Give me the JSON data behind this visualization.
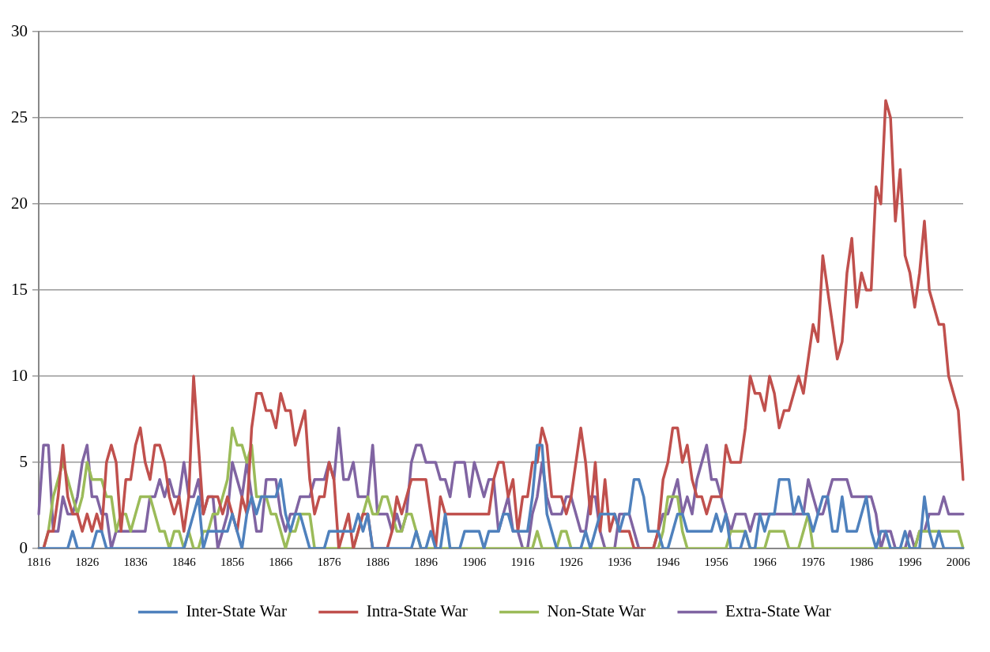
{
  "chart_data": {
    "type": "line",
    "categories": [
      "1816",
      null,
      null,
      null,
      null,
      null,
      null,
      null,
      null,
      null,
      "1826",
      null,
      null,
      null,
      null,
      null,
      null,
      null,
      null,
      null,
      "1836",
      null,
      null,
      null,
      null,
      null,
      null,
      null,
      null,
      null,
      "1846",
      null,
      null,
      null,
      null,
      null,
      null,
      null,
      null,
      null,
      "1856",
      null,
      null,
      null,
      null,
      null,
      null,
      null,
      null,
      null,
      "1866",
      null,
      null,
      null,
      null,
      null,
      null,
      null,
      null,
      null,
      "1876",
      null,
      null,
      null,
      null,
      null,
      null,
      null,
      null,
      null,
      "1886",
      null,
      null,
      null,
      null,
      null,
      null,
      null,
      null,
      null,
      "1896",
      null,
      null,
      null,
      null,
      null,
      null,
      null,
      null,
      null,
      "1906",
      null,
      null,
      null,
      null,
      null,
      null,
      null,
      null,
      null,
      "1916",
      null,
      null,
      null,
      null,
      null,
      null,
      null,
      null,
      null,
      "1926",
      null,
      null,
      null,
      null,
      null,
      null,
      null,
      null,
      null,
      "1936",
      null,
      null,
      null,
      null,
      null,
      null,
      null,
      null,
      null,
      "1946",
      null,
      null,
      null,
      null,
      null,
      null,
      null,
      null,
      null,
      "1956",
      null,
      null,
      null,
      null,
      null,
      null,
      null,
      null,
      null,
      "1966",
      null,
      null,
      null,
      null,
      null,
      null,
      null,
      null,
      null,
      "1976",
      null,
      null,
      null,
      null,
      null,
      null,
      null,
      null,
      null,
      "1986",
      null,
      null,
      null,
      null,
      null,
      null,
      null,
      null,
      null,
      "1996",
      null,
      null,
      null,
      null,
      null,
      null,
      null,
      null,
      null,
      "2006",
      null
    ],
    "series": [
      {
        "name": "Inter-State War",
        "color": "#4f81bd",
        "values": [
          0,
          0,
          0,
          0,
          0,
          0,
          0,
          1,
          0,
          0,
          0,
          0,
          1,
          1,
          0,
          0,
          0,
          0,
          0,
          0,
          0,
          0,
          0,
          0,
          0,
          0,
          0,
          0,
          0,
          0,
          0,
          1,
          2,
          3,
          0,
          1,
          1,
          1,
          1,
          1,
          2,
          1,
          0,
          2,
          3,
          2,
          3,
          3,
          3,
          3,
          4,
          2,
          1,
          2,
          2,
          1,
          0,
          0,
          0,
          0,
          1,
          1,
          1,
          1,
          1,
          1,
          2,
          1,
          2,
          0,
          0,
          0,
          0,
          0,
          0,
          0,
          0,
          0,
          1,
          0,
          0,
          1,
          0,
          0,
          2,
          0,
          0,
          0,
          1,
          1,
          1,
          1,
          0,
          1,
          1,
          1,
          2,
          2,
          1,
          1,
          1,
          1,
          3,
          6,
          6,
          2,
          1,
          0,
          0,
          0,
          0,
          0,
          0,
          1,
          0,
          1,
          2,
          2,
          2,
          2,
          1,
          2,
          2,
          4,
          4,
          3,
          1,
          1,
          1,
          0,
          0,
          1,
          2,
          2,
          1,
          1,
          1,
          1,
          1,
          1,
          2,
          1,
          2,
          0,
          0,
          0,
          1,
          0,
          0,
          2,
          1,
          2,
          2,
          4,
          4,
          4,
          2,
          3,
          2,
          2,
          1,
          2,
          3,
          3,
          1,
          1,
          3,
          1,
          1,
          1,
          2,
          3,
          1,
          0,
          1,
          1,
          0,
          0,
          0,
          1,
          0,
          0,
          0,
          3,
          1,
          0,
          1,
          0,
          0,
          0,
          0,
          0
        ]
      },
      {
        "name": "Intra-State War",
        "color": "#c0504d",
        "values": [
          0,
          0,
          1,
          1,
          3,
          6,
          3,
          2,
          2,
          1,
          2,
          1,
          2,
          1,
          5,
          6,
          5,
          1,
          4,
          4,
          6,
          7,
          5,
          4,
          6,
          6,
          5,
          3,
          2,
          3,
          1,
          3,
          10,
          6,
          2,
          3,
          3,
          3,
          2,
          3,
          2,
          1,
          3,
          2,
          7,
          9,
          9,
          8,
          8,
          7,
          9,
          8,
          8,
          6,
          7,
          8,
          4,
          2,
          3,
          3,
          5,
          4,
          0,
          1,
          2,
          0,
          1,
          2,
          2,
          0,
          0,
          0,
          0,
          1,
          3,
          2,
          3,
          4,
          4,
          4,
          4,
          2,
          0,
          3,
          2,
          2,
          2,
          2,
          2,
          2,
          2,
          2,
          2,
          2,
          4,
          5,
          5,
          3,
          4,
          1,
          3,
          3,
          5,
          5,
          7,
          6,
          3,
          3,
          3,
          2,
          3,
          5,
          7,
          5,
          2,
          5,
          1,
          4,
          1,
          2,
          1,
          1,
          1,
          0,
          0,
          0,
          0,
          0,
          1,
          4,
          5,
          7,
          7,
          5,
          6,
          4,
          3,
          3,
          2,
          3,
          3,
          3,
          6,
          5,
          5,
          5,
          7,
          10,
          9,
          9,
          8,
          10,
          9,
          7,
          8,
          8,
          9,
          10,
          9,
          11,
          13,
          12,
          17,
          15,
          13,
          11,
          12,
          16,
          18,
          14,
          16,
          15,
          15,
          21,
          20,
          26,
          25,
          19,
          22,
          17,
          16,
          14,
          16,
          19,
          15,
          14,
          13,
          13,
          10,
          9,
          8,
          4
        ]
      },
      {
        "name": "Non-State War",
        "color": "#9bbb59",
        "values": [
          0,
          0,
          1,
          3,
          4,
          5,
          4,
          3,
          2,
          3,
          5,
          4,
          4,
          4,
          3,
          3,
          1,
          2,
          2,
          1,
          2,
          3,
          3,
          3,
          2,
          1,
          1,
          0,
          1,
          1,
          0,
          1,
          0,
          0,
          1,
          1,
          2,
          2,
          3,
          4,
          7,
          6,
          6,
          5,
          6,
          3,
          3,
          3,
          2,
          2,
          1,
          0,
          1,
          1,
          2,
          2,
          2,
          0,
          0,
          0,
          0,
          0,
          0,
          0,
          0,
          0,
          1,
          2,
          3,
          2,
          2,
          3,
          3,
          2,
          1,
          1,
          2,
          2,
          1,
          0,
          0,
          0,
          0,
          0,
          0,
          0,
          0,
          0,
          0,
          0,
          0,
          0,
          0,
          0,
          0,
          0,
          0,
          0,
          0,
          0,
          0,
          0,
          0,
          1,
          0,
          0,
          0,
          0,
          1,
          1,
          0,
          0,
          0,
          0,
          0,
          0,
          0,
          0,
          0,
          0,
          0,
          0,
          0,
          0,
          0,
          0,
          0,
          0,
          0,
          1,
          3,
          3,
          3,
          1,
          0,
          0,
          0,
          0,
          0,
          0,
          0,
          0,
          0,
          1,
          1,
          1,
          1,
          0,
          0,
          0,
          0,
          1,
          1,
          1,
          1,
          0,
          0,
          0,
          1,
          2,
          0,
          0,
          0,
          0,
          0,
          0,
          0,
          0,
          0,
          0,
          0,
          0,
          0,
          0,
          0,
          0,
          0,
          0,
          0,
          0,
          0,
          0,
          1,
          1,
          1,
          1,
          1,
          1,
          1,
          1,
          1,
          0
        ]
      },
      {
        "name": "Extra-State War",
        "color": "#8064a2",
        "values": [
          2,
          6,
          6,
          1,
          1,
          3,
          2,
          2,
          3,
          5,
          6,
          3,
          3,
          2,
          2,
          0,
          1,
          1,
          1,
          1,
          1,
          1,
          1,
          3,
          3,
          4,
          3,
          4,
          3,
          3,
          5,
          3,
          3,
          4,
          2,
          3,
          3,
          0,
          1,
          2,
          5,
          4,
          3,
          5,
          3,
          1,
          1,
          4,
          4,
          4,
          2,
          1,
          2,
          2,
          3,
          3,
          3,
          4,
          4,
          4,
          5,
          4,
          7,
          4,
          4,
          5,
          3,
          3,
          3,
          6,
          2,
          2,
          2,
          1,
          2,
          1,
          2,
          5,
          6,
          6,
          5,
          5,
          5,
          4,
          4,
          3,
          5,
          5,
          5,
          3,
          5,
          4,
          3,
          4,
          4,
          1,
          2,
          3,
          1,
          1,
          0,
          0,
          2,
          3,
          5,
          3,
          2,
          2,
          2,
          3,
          3,
          2,
          1,
          1,
          3,
          3,
          1,
          0,
          0,
          0,
          2,
          2,
          2,
          1,
          0,
          0,
          0,
          0,
          1,
          2,
          2,
          3,
          4,
          2,
          3,
          2,
          4,
          5,
          6,
          4,
          4,
          3,
          2,
          1,
          2,
          2,
          2,
          1,
          2,
          2,
          2,
          2,
          2,
          2,
          2,
          2,
          2,
          2,
          2,
          4,
          3,
          2,
          2,
          3,
          4,
          4,
          4,
          4,
          3,
          3,
          3,
          3,
          3,
          2,
          0,
          1,
          1,
          0,
          0,
          0,
          1,
          0,
          1,
          1,
          2,
          2,
          2,
          3,
          2,
          2,
          2,
          2
        ]
      }
    ],
    "ylim": [
      0,
      30
    ],
    "yticks": [
      0,
      5,
      10,
      15,
      20,
      25,
      30
    ],
    "grid": "y",
    "legend": "bottom",
    "marker": "none",
    "line_style": "solid"
  }
}
